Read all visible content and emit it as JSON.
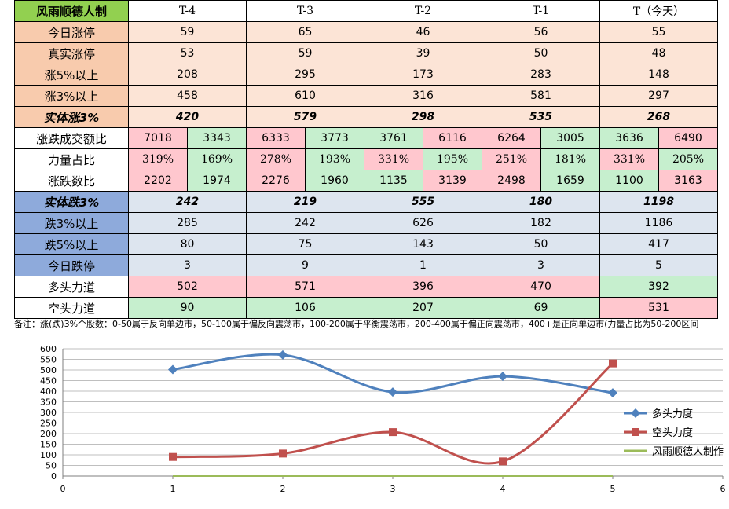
{
  "table": {
    "title": "风雨顺德人制",
    "columns": [
      "T-4",
      "T-3",
      "T-2",
      "T-1",
      "T（今天）"
    ],
    "rows_up": [
      {
        "label": "今日涨停",
        "values": [
          "59",
          "65",
          "46",
          "56",
          "55"
        ]
      },
      {
        "label": "真实涨停",
        "values": [
          "53",
          "59",
          "39",
          "50",
          "48"
        ]
      },
      {
        "label": "涨5%以上",
        "values": [
          "208",
          "295",
          "173",
          "283",
          "148"
        ]
      },
      {
        "label": "涨3%以上",
        "values": [
          "458",
          "610",
          "316",
          "581",
          "297"
        ]
      }
    ],
    "solid_up": {
      "label": "实体涨3%",
      "values": [
        "420",
        "579",
        "298",
        "535",
        "268"
      ]
    },
    "pair_rows": [
      {
        "label": "涨跌成交额比",
        "values": [
          [
            "7018",
            "3343"
          ],
          [
            "6333",
            "3773"
          ],
          [
            "3761",
            "6116"
          ],
          [
            "6264",
            "3005"
          ],
          [
            "3636",
            "6490"
          ]
        ]
      },
      {
        "label": "力量占比",
        "values": [
          [
            "319%",
            "169%"
          ],
          [
            "278%",
            "193%"
          ],
          [
            "331%",
            "195%"
          ],
          [
            "251%",
            "181%"
          ],
          [
            "331%",
            "205%"
          ]
        ]
      },
      {
        "label": "涨跌数比",
        "values": [
          [
            "2202",
            "1974"
          ],
          [
            "2276",
            "1960"
          ],
          [
            "1135",
            "3139"
          ],
          [
            "2498",
            "1659"
          ],
          [
            "1100",
            "3163"
          ]
        ]
      }
    ],
    "solid_down": {
      "label": "实体跌3%",
      "values": [
        "242",
        "219",
        "555",
        "180",
        "1198"
      ]
    },
    "rows_down": [
      {
        "label": "跌3%以上",
        "values": [
          "285",
          "242",
          "626",
          "182",
          "1186"
        ]
      },
      {
        "label": "跌5%以上",
        "values": [
          "80",
          "75",
          "143",
          "50",
          "417"
        ]
      },
      {
        "label": "今日跌停",
        "values": [
          "3",
          "9",
          "1",
          "3",
          "5"
        ]
      }
    ],
    "force_rows": [
      {
        "label": "多头力道",
        "values": [
          "502",
          "571",
          "396",
          "470",
          "392"
        ]
      },
      {
        "label": "空头力道",
        "values": [
          "90",
          "106",
          "207",
          "69",
          "531"
        ]
      }
    ]
  },
  "note": "备注：涨(跌)3%个股数：0-50属于反向单边市，50-100属于偏反向震荡市，100-200属于平衡震荡市，200-400属于偏正向震荡市，400+是正向单边市(力量占比为50-200区间",
  "colors": {
    "bull": "#4f81bd",
    "bear": "#c0504d",
    "third": "#9bbb59"
  },
  "chart_data": {
    "type": "line",
    "x": [
      1,
      2,
      3,
      4,
      5
    ],
    "series": [
      {
        "name": "多头力度",
        "values": [
          502,
          571,
          396,
          470,
          392
        ],
        "color": "#4f81bd",
        "marker": "diamond"
      },
      {
        "name": "空头力度",
        "values": [
          90,
          106,
          207,
          69,
          531
        ],
        "color": "#c0504d",
        "marker": "square"
      },
      {
        "name": "风雨顺德人制作",
        "values": [
          0,
          0,
          0,
          0,
          0
        ],
        "color": "#9bbb59",
        "marker": "none"
      }
    ],
    "xlim": [
      0,
      6
    ],
    "ylim": [
      0,
      600
    ],
    "xticks": [
      "0",
      "1",
      "2",
      "3",
      "4",
      "5",
      "6"
    ],
    "yticks": [
      "0",
      "50",
      "100",
      "150",
      "200",
      "250",
      "300",
      "350",
      "400",
      "450",
      "500",
      "550",
      "600"
    ],
    "grid": true,
    "legend": "right",
    "smooth": true
  }
}
